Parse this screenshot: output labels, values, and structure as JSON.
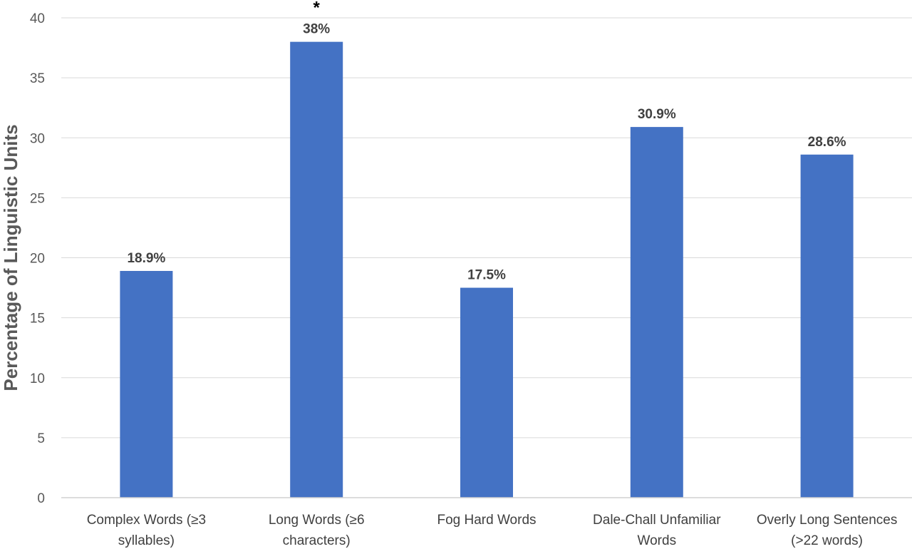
{
  "chart_data": {
    "type": "bar",
    "title": "",
    "xlabel": "",
    "ylabel": "Percentage of Linguistic Units",
    "ylim": [
      0,
      40
    ],
    "yticks": [
      0,
      5,
      10,
      15,
      20,
      25,
      30,
      35,
      40
    ],
    "grid": true,
    "legend": "none",
    "bar_color": "#4472C4",
    "categories": [
      [
        "Complex Words (≥3",
        "syllables)"
      ],
      [
        "Long Words (≥6",
        "characters)"
      ],
      [
        "Fog Hard Words"
      ],
      [
        "Dale-Chall Unfamiliar",
        "Words"
      ],
      [
        "Overly Long Sentences",
        "(>22 words)"
      ]
    ],
    "values": [
      18.9,
      38,
      17.5,
      30.9,
      28.6
    ],
    "data_labels": [
      "18.9%",
      "38%",
      "17.5%",
      "30.9%",
      "28.6%"
    ],
    "annotations": [
      {
        "category_index": 1,
        "text": "*"
      }
    ]
  }
}
